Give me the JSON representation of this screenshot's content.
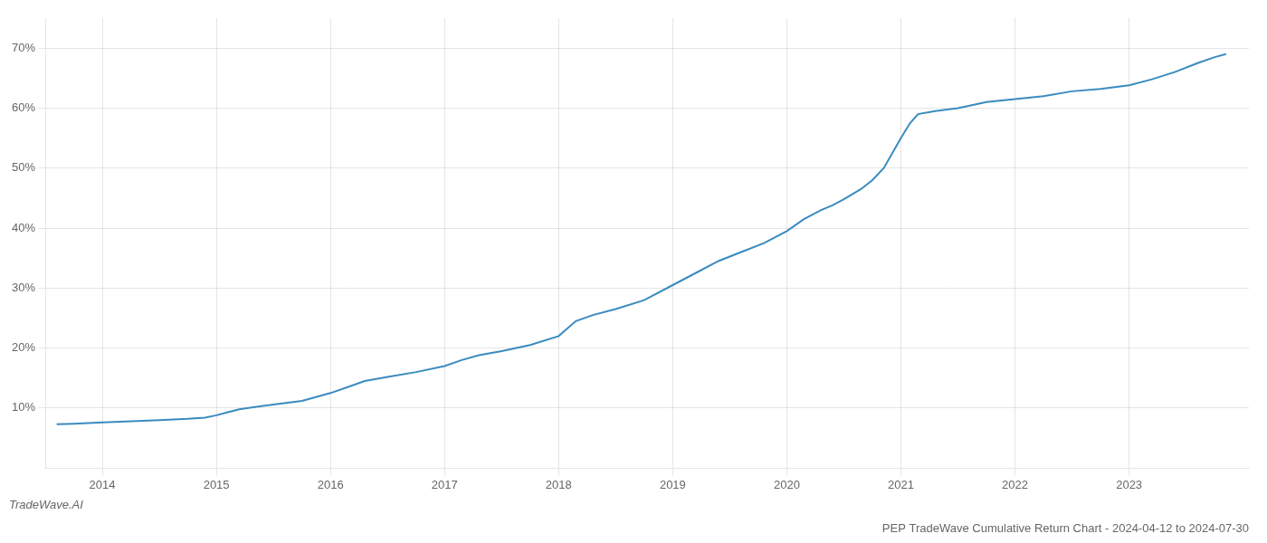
{
  "chart_data": {
    "type": "line",
    "title": "PEP TradeWave Cumulative Return Chart - 2024-04-12 to 2024-07-30",
    "annotations": [
      "TradeWave.AI"
    ],
    "color": "#3a8bbf",
    "x": [
      2013.6,
      2013.75,
      2014.0,
      2014.25,
      2014.5,
      2014.75,
      2014.9,
      2015.0,
      2015.1,
      2015.2,
      2015.35,
      2015.5,
      2015.75,
      2016.0,
      2016.15,
      2016.3,
      2016.5,
      2016.75,
      2017.0,
      2017.15,
      2017.3,
      2017.5,
      2017.75,
      2018.0,
      2018.15,
      2018.3,
      2018.5,
      2018.75,
      2019.0,
      2019.2,
      2019.4,
      2019.6,
      2019.8,
      2020.0,
      2020.15,
      2020.3,
      2020.4,
      2020.5,
      2020.65,
      2020.75,
      2020.85,
      2021.0,
      2021.08,
      2021.15,
      2021.3,
      2021.5,
      2021.75,
      2022.0,
      2022.25,
      2022.5,
      2022.75,
      2023.0,
      2023.2,
      2023.4,
      2023.6,
      2023.75,
      2023.85
    ],
    "values": [
      7.3,
      7.4,
      7.6,
      7.8,
      8.0,
      8.2,
      8.4,
      8.8,
      9.3,
      9.8,
      10.2,
      10.6,
      11.2,
      12.5,
      13.5,
      14.5,
      15.2,
      16.0,
      17.0,
      18.0,
      18.8,
      19.5,
      20.5,
      22.0,
      24.5,
      25.5,
      26.5,
      28.0,
      30.5,
      32.5,
      34.5,
      36.0,
      37.5,
      39.5,
      41.5,
      43.0,
      43.8,
      44.8,
      46.5,
      48.0,
      50.0,
      55.0,
      57.5,
      59.0,
      59.5,
      60.0,
      61.0,
      61.5,
      62.0,
      62.8,
      63.2,
      63.8,
      64.8,
      66.0,
      67.5,
      68.5,
      69.0
    ],
    "xlim": [
      2013.5,
      2024.05
    ],
    "xticks": [
      2014,
      2015,
      2016,
      2017,
      2018,
      2019,
      2020,
      2021,
      2022,
      2023
    ],
    "ylim": [
      0,
      75
    ],
    "yticks": [
      {
        "value": 10,
        "label": "10%"
      },
      {
        "value": 20,
        "label": "20%"
      },
      {
        "value": 30,
        "label": "30%"
      },
      {
        "value": 40,
        "label": "40%"
      },
      {
        "value": 50,
        "label": "50%"
      },
      {
        "value": 60,
        "label": "60%"
      },
      {
        "value": 70,
        "label": "70%"
      }
    ],
    "grid": true
  }
}
